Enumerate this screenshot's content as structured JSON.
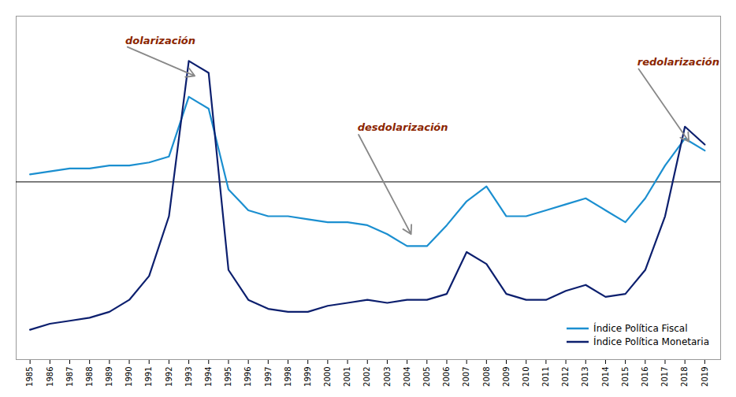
{
  "chart_data": {
    "type": "line",
    "x": [
      1985,
      1986,
      1987,
      1988,
      1989,
      1990,
      1991,
      1992,
      1993,
      1994,
      1995,
      1996,
      1997,
      1998,
      1999,
      2000,
      2001,
      2002,
      2003,
      2004,
      2005,
      2006,
      2007,
      2008,
      2009,
      2010,
      2011,
      2012,
      2013,
      2014,
      2015,
      2016,
      2017,
      2018,
      2019
    ],
    "series": [
      {
        "name": "Índice Política Fiscal",
        "color": "#1B8FD0",
        "values": [
          0.62,
          0.63,
          0.64,
          0.64,
          0.65,
          0.65,
          0.66,
          0.68,
          0.88,
          0.84,
          0.57,
          0.5,
          0.48,
          0.48,
          0.47,
          0.46,
          0.46,
          0.45,
          0.42,
          0.38,
          0.38,
          0.45,
          0.53,
          0.58,
          0.48,
          0.48,
          0.5,
          0.52,
          0.54,
          0.5,
          0.46,
          0.54,
          0.65,
          0.74,
          0.7
        ]
      },
      {
        "name": "Índice Política Monetaria",
        "color": "#0C1F6E",
        "values": [
          0.1,
          0.12,
          0.13,
          0.14,
          0.16,
          0.2,
          0.28,
          0.48,
          1.0,
          0.96,
          0.3,
          0.2,
          0.17,
          0.16,
          0.16,
          0.18,
          0.19,
          0.2,
          0.19,
          0.2,
          0.2,
          0.22,
          0.36,
          0.32,
          0.22,
          0.2,
          0.2,
          0.23,
          0.25,
          0.21,
          0.22,
          0.3,
          0.48,
          0.78,
          0.72
        ]
      }
    ],
    "hline": 0.595,
    "annotations": [
      {
        "text": "dolarización",
        "x": 1993.3,
        "y": 0.95,
        "text_x": 1989.8,
        "text_y": 1.05,
        "color": "#8B2500"
      },
      {
        "text": "desdolarización",
        "x": 2004.2,
        "y": 0.42,
        "text_x": 2001.5,
        "text_y": 0.76,
        "color": "#8B2500"
      },
      {
        "text": "redolarización",
        "x": 2018.2,
        "y": 0.73,
        "text_x": 2015.6,
        "text_y": 0.98,
        "color": "#8B2500"
      }
    ],
    "xlim": [
      1984.3,
      2019.8
    ],
    "xticks": [
      1985,
      1986,
      1987,
      1988,
      1989,
      1990,
      1991,
      1992,
      1993,
      1994,
      1995,
      1996,
      1997,
      1998,
      1999,
      2000,
      2001,
      2002,
      2003,
      2004,
      2005,
      2006,
      2007,
      2008,
      2009,
      2010,
      2011,
      2012,
      2013,
      2014,
      2015,
      2016,
      2017,
      2018,
      2019
    ],
    "ylim": [
      0.0,
      1.15
    ],
    "tick_labels": "x",
    "grid": false,
    "legend": "lower right"
  }
}
